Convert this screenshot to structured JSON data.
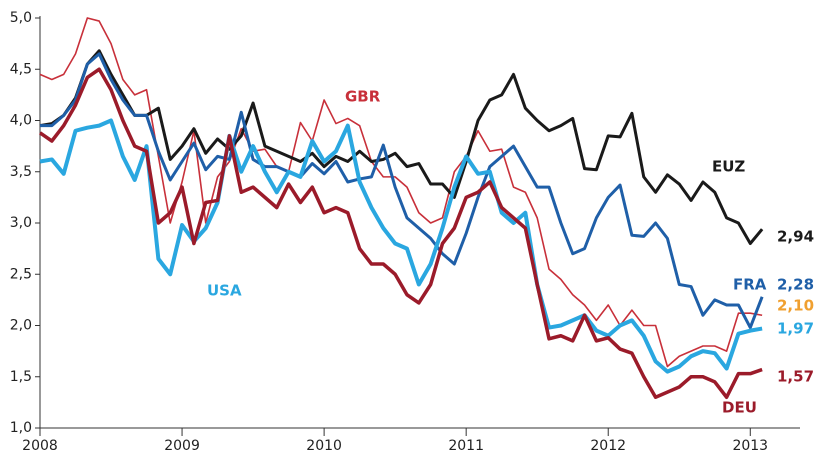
{
  "chart_data": {
    "type": "line",
    "xlim": [
      2008,
      2013.35
    ],
    "xticks": [
      2008,
      2009,
      2010,
      2011,
      2012,
      2013
    ],
    "ylim": [
      1,
      5
    ],
    "yticks": [
      {
        "value": 1,
        "label": "1,0"
      },
      {
        "value": 1.5,
        "label": "1,5"
      },
      {
        "value": 2,
        "label": "2,0"
      },
      {
        "value": 2.5,
        "label": "2,5"
      },
      {
        "value": 3,
        "label": "3,0"
      },
      {
        "value": 3.5,
        "label": "3,5"
      },
      {
        "value": 4,
        "label": "4,0"
      },
      {
        "value": 4.5,
        "label": "4,5"
      },
      {
        "value": 5,
        "label": "5,0"
      }
    ],
    "grid": false,
    "x_start": 2008,
    "x_step_months": 1,
    "series": [
      {
        "name": "GBR",
        "color": "#c8303a",
        "width": 1.6,
        "end_label": "2,10",
        "label_color": "#f0a030",
        "values": [
          4.45,
          4.4,
          4.45,
          4.65,
          5.0,
          4.97,
          4.75,
          4.4,
          4.25,
          4.3,
          3.65,
          3.0,
          3.4,
          3.9,
          3.0,
          3.45,
          3.6,
          3.92,
          3.7,
          3.72,
          3.55,
          3.5,
          3.98,
          3.8,
          4.2,
          3.97,
          4.02,
          3.95,
          3.6,
          3.45,
          3.45,
          3.35,
          3.1,
          3.0,
          3.05,
          3.5,
          3.65,
          3.9,
          3.7,
          3.72,
          3.35,
          3.3,
          3.05,
          2.55,
          2.45,
          2.3,
          2.2,
          2.05,
          2.2,
          2.0,
          2.15,
          2.0,
          2.0,
          1.6,
          1.7,
          1.75,
          1.8,
          1.8,
          1.75,
          2.12,
          2.12,
          2.1
        ]
      },
      {
        "name": "EUZ",
        "color": "#1a1a1a",
        "width": 3,
        "end_label": "2,94",
        "label_color": "#1a1a1a",
        "values": [
          3.95,
          3.97,
          4.05,
          4.22,
          4.55,
          4.68,
          4.45,
          4.25,
          4.05,
          4.05,
          4.12,
          3.62,
          3.75,
          3.92,
          3.68,
          3.82,
          3.72,
          3.85,
          4.17,
          3.75,
          3.7,
          3.65,
          3.6,
          3.68,
          3.55,
          3.65,
          3.6,
          3.7,
          3.6,
          3.62,
          3.68,
          3.55,
          3.58,
          3.38,
          3.38,
          3.25,
          3.6,
          4.0,
          4.2,
          4.25,
          4.45,
          4.12,
          4.0,
          3.9,
          3.95,
          4.02,
          3.53,
          3.52,
          3.85,
          3.84,
          4.07,
          3.45,
          3.3,
          3.47,
          3.38,
          3.22,
          3.4,
          3.3,
          3.05,
          3.0,
          2.8,
          2.94
        ]
      },
      {
        "name": "FRA",
        "color": "#1f5fa8",
        "width": 3,
        "end_label": "2,28",
        "label_color": "#1f5fa8",
        "values": [
          3.95,
          3.95,
          4.05,
          4.2,
          4.55,
          4.65,
          4.4,
          4.2,
          4.05,
          4.05,
          3.7,
          3.42,
          3.6,
          3.78,
          3.52,
          3.65,
          3.62,
          4.08,
          3.62,
          3.55,
          3.55,
          3.5,
          3.45,
          3.58,
          3.48,
          3.6,
          3.4,
          3.43,
          3.45,
          3.76,
          3.35,
          3.05,
          2.95,
          2.85,
          2.7,
          2.6,
          2.9,
          3.25,
          3.55,
          3.65,
          3.75,
          3.55,
          3.35,
          3.35,
          3.0,
          2.7,
          2.75,
          3.05,
          3.25,
          3.37,
          2.88,
          2.87,
          3.0,
          2.85,
          2.4,
          2.38,
          2.1,
          2.25,
          2.2,
          2.2,
          1.98,
          2.28
        ]
      },
      {
        "name": "USA",
        "color": "#2aa7e0",
        "width": 4,
        "end_label": "1,97",
        "label_color": "#2aa7e0",
        "values": [
          3.6,
          3.62,
          3.48,
          3.9,
          3.93,
          3.95,
          4.0,
          3.65,
          3.42,
          3.75,
          2.65,
          2.5,
          2.98,
          2.82,
          2.95,
          3.2,
          3.85,
          3.5,
          3.75,
          3.5,
          3.3,
          3.5,
          3.45,
          3.8,
          3.6,
          3.7,
          3.95,
          3.4,
          3.15,
          2.95,
          2.8,
          2.75,
          2.4,
          2.6,
          2.95,
          3.35,
          3.65,
          3.48,
          3.5,
          3.1,
          3.0,
          3.1,
          2.4,
          1.98,
          2.0,
          2.05,
          2.1,
          1.95,
          1.9,
          2.0,
          2.05,
          1.9,
          1.65,
          1.55,
          1.6,
          1.7,
          1.75,
          1.73,
          1.58,
          1.92,
          1.95,
          1.97
        ]
      },
      {
        "name": "DEU",
        "color": "#9b1b2a",
        "width": 3.5,
        "end_label": "1,57",
        "label_color": "#9b1b2a",
        "values": [
          3.88,
          3.8,
          3.95,
          4.15,
          4.42,
          4.5,
          4.3,
          4.0,
          3.75,
          3.7,
          3.0,
          3.1,
          3.35,
          2.8,
          3.2,
          3.22,
          3.85,
          3.3,
          3.35,
          3.25,
          3.15,
          3.38,
          3.2,
          3.35,
          3.1,
          3.15,
          3.1,
          2.75,
          2.6,
          2.6,
          2.5,
          2.3,
          2.22,
          2.4,
          2.8,
          2.95,
          3.25,
          3.3,
          3.4,
          3.15,
          3.05,
          2.95,
          2.4,
          1.87,
          1.9,
          1.85,
          2.1,
          1.85,
          1.88,
          1.77,
          1.73,
          1.5,
          1.3,
          1.35,
          1.4,
          1.5,
          1.5,
          1.45,
          1.3,
          1.53,
          1.53,
          1.57
        ]
      }
    ]
  }
}
